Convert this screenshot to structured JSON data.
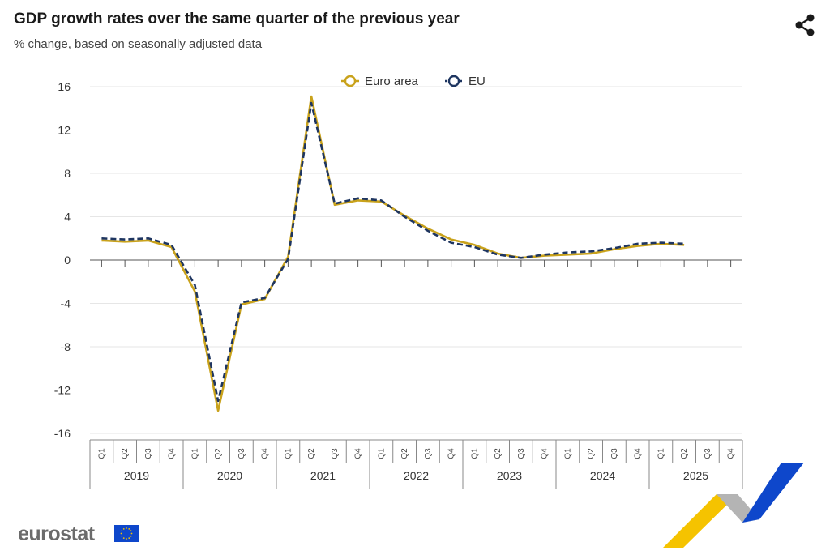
{
  "header": {
    "title": "GDP growth rates over the same quarter of the previous year",
    "subtitle": "% change, based on seasonally adjusted data"
  },
  "toolbar": {
    "share_icon": "share-icon"
  },
  "brand": {
    "logo_text": "eurostat",
    "flag_icon": "eu-flag-icon"
  },
  "colors": {
    "euro_area": "#c9a21b",
    "eu": "#1e3560",
    "grid": "#e6e6e6",
    "axis": "#888888",
    "ribbon_yellow": "#f5c300",
    "ribbon_blue": "#0e47cb",
    "ribbon_grey": "#b4b4b4",
    "flag_blue": "#0e47cb",
    "flag_star": "#f5c300"
  },
  "chart_data": {
    "type": "line",
    "title": "GDP growth rates over the same quarter of the previous year",
    "subtitle": "% change, based on seasonally adjusted data",
    "legend_position": "top-center",
    "grid": true,
    "ylim": [
      -16,
      16
    ],
    "yticks": [
      -16,
      -12,
      -8,
      -4,
      0,
      4,
      8,
      12,
      16
    ],
    "ytick_labels": [
      "-16",
      "-12",
      "-8",
      "-4",
      "0",
      "4",
      "8",
      "12",
      "16"
    ],
    "categories": [
      "Q1",
      "Q2",
      "Q3",
      "Q4",
      "Q1",
      "Q2",
      "Q3",
      "Q4",
      "Q1",
      "Q2",
      "Q3",
      "Q4",
      "Q1",
      "Q2",
      "Q3",
      "Q4",
      "Q1",
      "Q2",
      "Q3",
      "Q4",
      "Q1",
      "Q2",
      "Q3",
      "Q4",
      "Q1",
      "Q2",
      "Q3",
      "Q4"
    ],
    "years": [
      "2019",
      "2020",
      "2021",
      "2022",
      "2023",
      "2024",
      "2025"
    ],
    "series": [
      {
        "name": "Euro area",
        "values": [
          1.8,
          1.7,
          1.8,
          1.2,
          -2.9,
          -13.9,
          -4.1,
          -3.6,
          0.3,
          15.1,
          5.1,
          5.5,
          5.4,
          4.1,
          2.9,
          1.9,
          1.4,
          0.6,
          0.2,
          0.4,
          0.5,
          0.6,
          1.0,
          1.3,
          1.5,
          1.4,
          null,
          null
        ]
      },
      {
        "name": "EU",
        "values": [
          2.0,
          1.9,
          2.0,
          1.4,
          -2.3,
          -13.0,
          -3.9,
          -3.5,
          0.1,
          14.5,
          5.2,
          5.7,
          5.5,
          4.0,
          2.7,
          1.6,
          1.2,
          0.5,
          0.2,
          0.5,
          0.7,
          0.8,
          1.1,
          1.5,
          1.6,
          1.5,
          null,
          null
        ]
      }
    ]
  }
}
